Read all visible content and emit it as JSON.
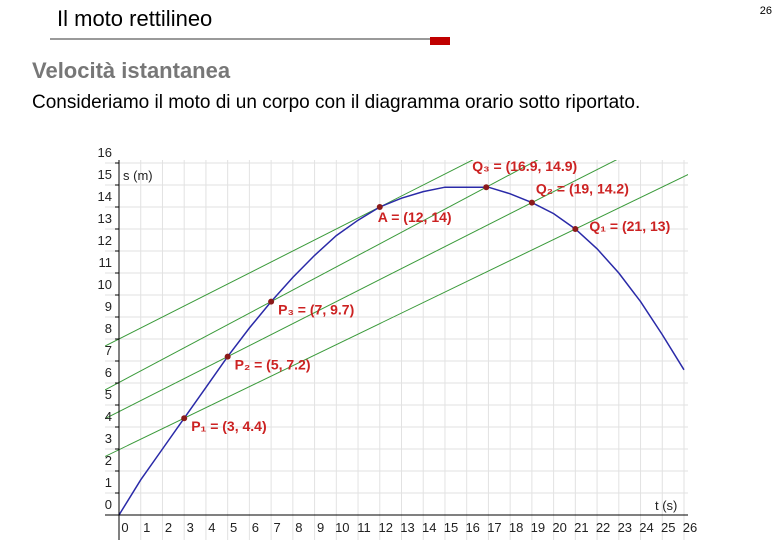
{
  "header": {
    "title": "Il moto rettilineo",
    "page_number": "26"
  },
  "subtitle": "Velocità istantanea",
  "body_text": "Consideriamo il moto di un corpo con il diagramma orario sotto riportato.",
  "chart_data": {
    "type": "line",
    "x_label": "t (s)",
    "y_label": "s (m)",
    "x": [
      0,
      1,
      2,
      3,
      4,
      5,
      6,
      7,
      8,
      9,
      10,
      11,
      12,
      13,
      14,
      15,
      16,
      17,
      18,
      19,
      20,
      21,
      22,
      23,
      24,
      25,
      26
    ],
    "series": [
      {
        "color": "#2a2aa8",
        "values": [
          0,
          1.6,
          3.0,
          4.4,
          5.8,
          7.2,
          8.5,
          9.7,
          10.8,
          11.8,
          12.7,
          13.4,
          14,
          14.4,
          14.7,
          14.9,
          14.9,
          14.9,
          14.6,
          14.2,
          13.7,
          13,
          12.1,
          11.0,
          9.7,
          8.2,
          6.6
        ]
      }
    ],
    "points": {
      "color": "#8b1a1a",
      "label_color": "#cc2222",
      "x": [
        3,
        5,
        7,
        12,
        16.9,
        19,
        21
      ],
      "y": [
        4.4,
        7.2,
        9.7,
        14,
        14.9,
        14.2,
        13
      ],
      "labels": [
        "P₁ = (3, 4.4)",
        "P₂ = (5, 7.2)",
        "P₃ = (7, 9.7)",
        "A = (12, 14)",
        "Q₃ = (16.9, 14.9)",
        "Q₂ = (19, 14.2)",
        "Q₁ = (21, 13)"
      ]
    },
    "secant_color": "#3a9a3a",
    "xlim": [
      0,
      26
    ],
    "ylim": [
      0,
      16
    ],
    "xticks": [
      0,
      1,
      2,
      3,
      4,
      5,
      6,
      7,
      8,
      9,
      10,
      11,
      12,
      13,
      14,
      15,
      16,
      17,
      18,
      19,
      20,
      21,
      22,
      23,
      24,
      25,
      26
    ],
    "yticks": [
      0,
      1,
      2,
      3,
      4,
      5,
      6,
      7,
      8,
      9,
      10,
      11,
      12,
      13,
      14,
      15,
      16
    ],
    "grid": true
  }
}
